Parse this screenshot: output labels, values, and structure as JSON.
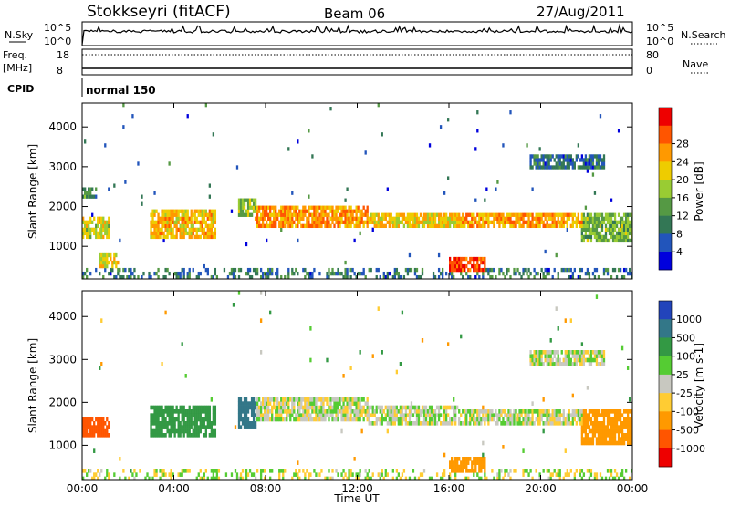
{
  "header": {
    "station": "Stokkseyri (fitACF)",
    "beam": "Beam 06",
    "date": "27/Aug/2011"
  },
  "top_panels": {
    "nsky_label": "N.Sky",
    "nsearch_label": "N.Search",
    "nsky_ticks": [
      "10^5",
      "10^0"
    ],
    "nsearch_ticks": [
      "10^5",
      "10^0"
    ],
    "freq_label_1": "Freq.",
    "freq_label_2": "[MHz]",
    "freq_ticks": [
      "18",
      "8"
    ],
    "nave_label": "Nave",
    "nave_ticks": [
      "80",
      "0"
    ],
    "cpid_label": "CPID",
    "cpid_value": "normal 150"
  },
  "chart_data": [
    {
      "type": "heatmap",
      "panel": "power",
      "xlabel": "Time UT",
      "ylabel": "Slant Range [km]",
      "x_ticks": [
        "00:00",
        "04:00",
        "08:00",
        "12:00",
        "16:00",
        "20:00",
        "00:00"
      ],
      "x_range_hours": [
        0,
        24
      ],
      "y_range_km": [
        180,
        4600
      ],
      "y_ticks": [
        "1000",
        "2000",
        "3000",
        "4000"
      ],
      "colorbar_label": "Power [dB]",
      "colorbar_ticks": [
        "4",
        "8",
        "12",
        "16",
        "20",
        "24",
        "28"
      ],
      "colorbar_range": [
        0,
        30
      ],
      "colors": [
        "#0000dd",
        "#2255bb",
        "#337755",
        "#559944",
        "#99cc33",
        "#eecc00",
        "#ff9900",
        "#ff5500",
        "#ee0000"
      ],
      "features": [
        {
          "t": [
            0.0,
            1.2
          ],
          "r": [
            1200,
            1700
          ],
          "level": 17
        },
        {
          "t": [
            0.0,
            0.6
          ],
          "r": [
            2250,
            2450
          ],
          "level": 10
        },
        {
          "t": [
            0.7,
            1.6
          ],
          "r": [
            500,
            800
          ],
          "level": 18
        },
        {
          "t": [
            3.0,
            5.8
          ],
          "r": [
            1150,
            1900
          ],
          "level": 20
        },
        {
          "t": [
            6.8,
            7.6
          ],
          "r": [
            1700,
            2200
          ],
          "level": 14
        },
        {
          "t": [
            7.5,
            12.5
          ],
          "r": [
            1500,
            2050
          ],
          "level": 22
        },
        {
          "t": [
            12.5,
            16.5
          ],
          "r": [
            1450,
            1800
          ],
          "level": 19
        },
        {
          "t": [
            16.0,
            17.6
          ],
          "r": [
            400,
            700
          ],
          "level": 26
        },
        {
          "t": [
            16.5,
            21.8
          ],
          "r": [
            1450,
            1800
          ],
          "level": 21
        },
        {
          "t": [
            21.8,
            24.0
          ],
          "r": [
            1100,
            1800
          ],
          "level": 13
        },
        {
          "t": [
            19.5,
            22.8
          ],
          "r": [
            2900,
            3300
          ],
          "level": 7
        }
      ]
    },
    {
      "type": "heatmap",
      "panel": "velocity",
      "xlabel": "Time UT",
      "ylabel": "Slant Range [km]",
      "x_ticks": [
        "00:00",
        "04:00",
        "08:00",
        "12:00",
        "16:00",
        "20:00",
        "00:00"
      ],
      "x_range_hours": [
        0,
        24
      ],
      "y_range_km": [
        180,
        4600
      ],
      "y_ticks": [
        "1000",
        "2000",
        "3000",
        "4000"
      ],
      "colorbar_label": "Velocity [m s-1]",
      "colorbar_ticks": [
        "1000",
        "500",
        "100",
        "25",
        "-25",
        "-100",
        "-500",
        "-1000"
      ],
      "colors": [
        "#2244bb",
        "#337788",
        "#339944",
        "#55cc33",
        "#c8c8c0",
        "#ffcc33",
        "#ff9900",
        "#ff5500",
        "#ee0000"
      ],
      "features": [
        {
          "t": [
            0.0,
            1.2
          ],
          "r": [
            1150,
            1650
          ],
          "vel": -600
        },
        {
          "t": [
            3.0,
            5.8
          ],
          "r": [
            1150,
            1900
          ],
          "vel": 200
        },
        {
          "t": [
            6.8,
            7.6
          ],
          "r": [
            1400,
            2100
          ],
          "vel": 600
        },
        {
          "t": [
            7.5,
            12.5
          ],
          "r": [
            1550,
            2100
          ],
          "vel": 0
        },
        {
          "t": [
            12.5,
            16.5
          ],
          "r": [
            1450,
            1900
          ],
          "vel": 0
        },
        {
          "t": [
            16.0,
            17.6
          ],
          "r": [
            400,
            700
          ],
          "vel": -200
        },
        {
          "t": [
            16.5,
            21.8
          ],
          "r": [
            1450,
            1850
          ],
          "vel": 0
        },
        {
          "t": [
            21.8,
            24.0
          ],
          "r": [
            1050,
            1800
          ],
          "vel": -400
        },
        {
          "t": [
            19.5,
            22.8
          ],
          "r": [
            2850,
            3250
          ],
          "vel": 0
        }
      ]
    }
  ]
}
